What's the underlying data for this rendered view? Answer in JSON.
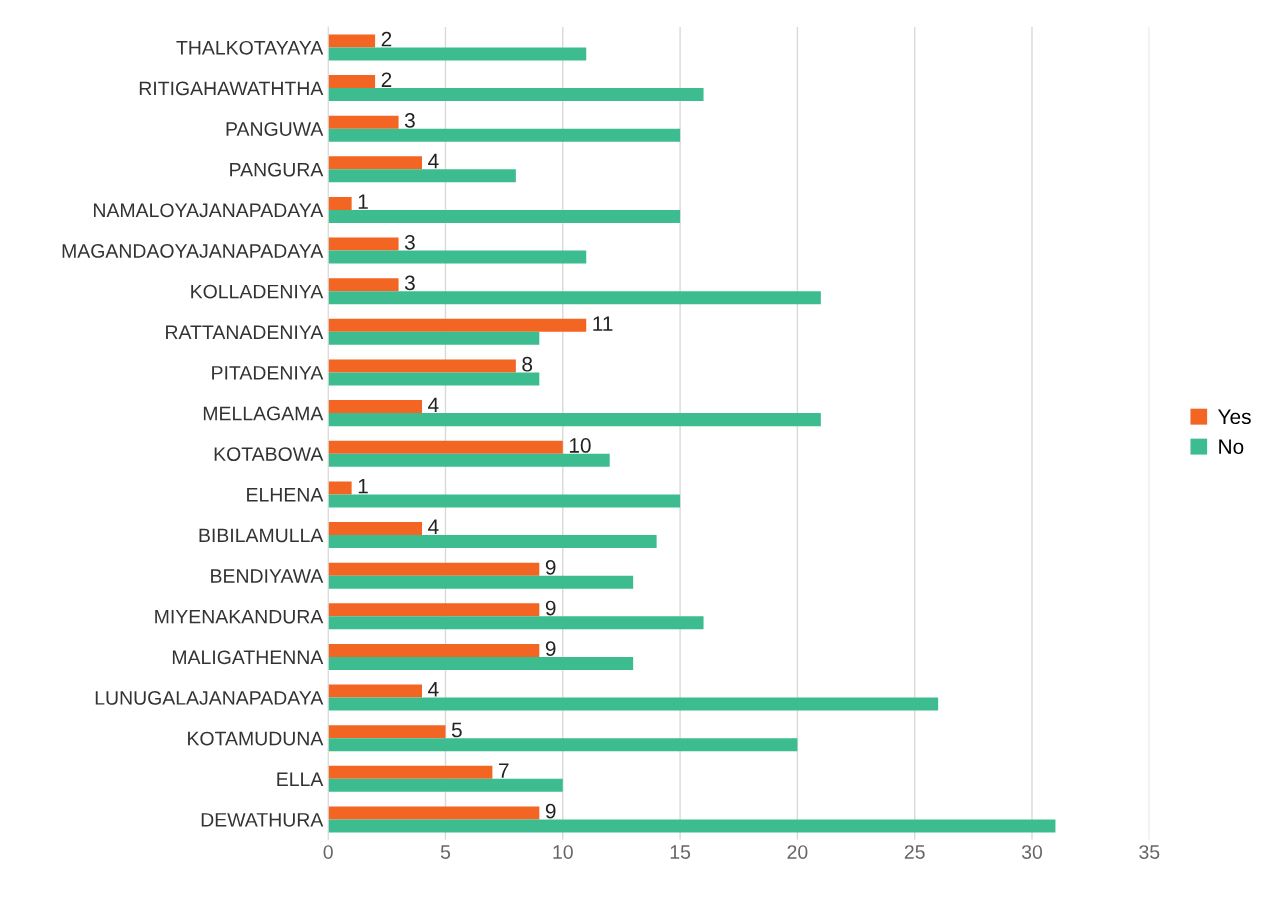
{
  "chart_data": {
    "type": "bar",
    "orientation": "horizontal",
    "categories": [
      "THALKOTAYAYA",
      "RITIGAHAWATHTHA",
      "PANGUWA",
      "PANGURA",
      "NAMALOYAJANAPADAYA",
      "MAGANDAOYAJANAPADAYA",
      "KOLLADENIYA",
      "RATTANADENIYA",
      "PITADENIYA",
      "MELLAGAMA",
      "KOTABOWA",
      "ELHENA",
      "BIBILAMULLA",
      "BENDIYAWA",
      "MIYENAKANDURA",
      "MALIGATHENNA",
      "LUNUGALAJANAPADAYA",
      "KOTAMUDUNA",
      "ELLA",
      "DEWATHURA"
    ],
    "series": [
      {
        "name": "Yes",
        "color": "#f26522",
        "values": [
          2,
          2,
          3,
          4,
          1,
          3,
          3,
          11,
          8,
          4,
          10,
          1,
          4,
          9,
          9,
          9,
          4,
          5,
          7,
          9
        ],
        "value_labels": [
          "2",
          "2",
          "3",
          "4",
          "1",
          "3",
          "3",
          "11",
          "8",
          "4",
          "10",
          "1",
          "4",
          "9",
          "9",
          "9",
          "4",
          "5",
          "7",
          "9"
        ]
      },
      {
        "name": "No",
        "color": "#3dbd8f",
        "values": [
          11,
          16,
          15,
          8,
          15,
          11,
          21,
          9,
          9,
          21,
          12,
          15,
          14,
          13,
          16,
          13,
          26,
          20,
          10,
          31
        ]
      }
    ],
    "xlim": [
      0,
      35
    ],
    "xticks": [
      0,
      5,
      10,
      15,
      20,
      25,
      30,
      35
    ],
    "grid": "x",
    "legend": "right"
  }
}
